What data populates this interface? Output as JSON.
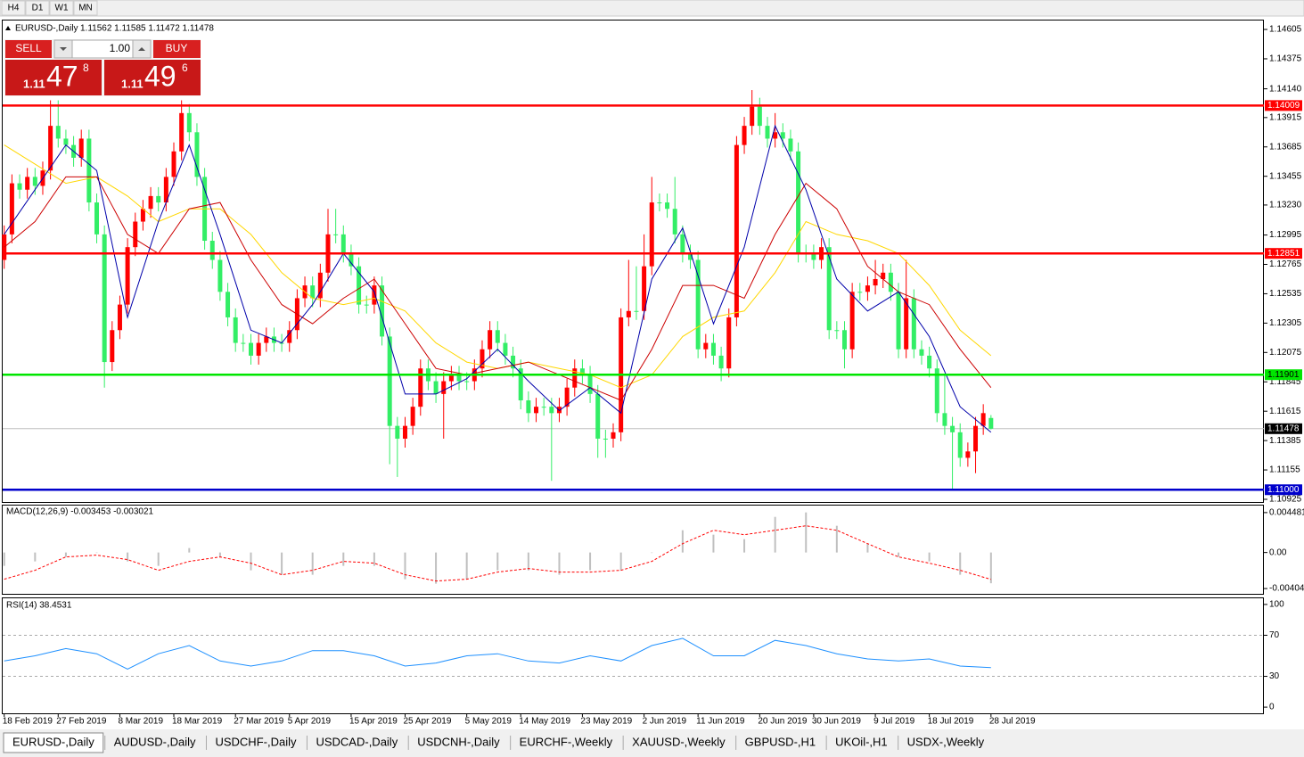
{
  "toolbar": {
    "timeframes": [
      "H4",
      "D1",
      "W1",
      "MN"
    ]
  },
  "trade_panel": {
    "sell": "SELL",
    "buy": "BUY",
    "lot": "1.00",
    "sell_price": {
      "prefix": "1.11",
      "big": "47",
      "small": "8"
    },
    "buy_price": {
      "prefix": "1.11",
      "big": "49",
      "small": "6"
    }
  },
  "chart_data": {
    "type": "candlestick",
    "title": "EURUSD-,Daily",
    "quote": "1.11562 1.11585 1.11472 1.11478",
    "up_color": "#ff0000",
    "down_color": "#33ee66",
    "open": [
      1.128,
      1.13,
      1.134,
      1.1335,
      1.1345,
      1.1338,
      1.135,
      1.1385,
      1.1375,
      1.137,
      1.136,
      1.1375,
      1.1325,
      1.13,
      1.12,
      1.1225,
      1.1245,
      1.129,
      1.131,
      1.132,
      1.133,
      1.1325,
      1.1345,
      1.1365,
      1.1395,
      1.138,
      1.1345,
      1.1295,
      1.128,
      1.1255,
      1.1235,
      1.1215,
      1.1215,
      1.1205,
      1.1215,
      1.122,
      1.1215,
      1.1215,
      1.1225,
      1.125,
      1.126,
      1.125,
      1.127,
      1.13,
      1.13,
      1.1285,
      1.1275,
      1.1245,
      1.1245,
      1.126,
      1.122,
      1.115,
      1.114,
      1.115,
      1.1165,
      1.1195,
      1.1185,
      1.1175,
      1.1185,
      1.119,
      1.1185,
      1.1185,
      1.1195,
      1.121,
      1.1225,
      1.1215,
      1.1205,
      1.1195,
      1.117,
      1.116,
      1.1165,
      1.1165,
      1.116,
      1.1165,
      1.118,
      1.1195,
      1.119,
      1.1175,
      1.114,
      1.114,
      1.1145,
      1.1235,
      1.124,
      1.124,
      1.1275,
      1.1325,
      1.1325,
      1.132,
      1.13,
      1.1285,
      1.128,
      1.121,
      1.1215,
      1.1205,
      1.1195,
      1.1235,
      1.137,
      1.1385,
      1.14,
      1.1385,
      1.1375,
      1.138,
      1.1375,
      1.1365,
      1.1285,
      1.1285,
      1.128,
      1.129,
      1.1225,
      1.1225,
      1.121,
      1.1255,
      1.1255,
      1.126,
      1.1265,
      1.127,
      1.1255,
      1.121,
      1.125,
      1.121,
      1.1205,
      1.1195,
      1.116,
      1.115,
      1.1145,
      1.1125,
      1.113,
      1.115,
      1.11562
    ],
    "high": [
      1.1307,
      1.1347,
      1.1347,
      1.1352,
      1.1352,
      1.1357,
      1.1405,
      1.1405,
      1.1382,
      1.1377,
      1.1382,
      1.1382,
      1.1332,
      1.1307,
      1.1232,
      1.1252,
      1.1297,
      1.1317,
      1.1327,
      1.1337,
      1.1337,
      1.1352,
      1.1372,
      1.1405,
      1.1402,
      1.1387,
      1.1352,
      1.1302,
      1.1287,
      1.1262,
      1.1242,
      1.1222,
      1.1222,
      1.1222,
      1.1227,
      1.1227,
      1.1222,
      1.1232,
      1.1257,
      1.1267,
      1.1267,
      1.1277,
      1.132,
      1.132,
      1.1307,
      1.1292,
      1.1282,
      1.1252,
      1.1267,
      1.1267,
      1.1227,
      1.1157,
      1.1157,
      1.1172,
      1.1202,
      1.1202,
      1.1192,
      1.1192,
      1.1197,
      1.1197,
      1.1192,
      1.1202,
      1.1217,
      1.1232,
      1.1232,
      1.1222,
      1.1212,
      1.1202,
      1.1177,
      1.1172,
      1.1172,
      1.1172,
      1.1172,
      1.1187,
      1.1202,
      1.1202,
      1.1197,
      1.1182,
      1.1147,
      1.1152,
      1.1242,
      1.128,
      1.1275,
      1.13,
      1.1345,
      1.1332,
      1.1332,
      1.1345,
      1.1307,
      1.1292,
      1.1287,
      1.1222,
      1.1222,
      1.1212,
      1.1242,
      1.1377,
      1.1392,
      1.1413,
      1.1407,
      1.1392,
      1.1395,
      1.1387,
      1.1382,
      1.1372,
      1.1292,
      1.1292,
      1.1297,
      1.1297,
      1.1232,
      1.1232,
      1.1262,
      1.1262,
      1.1267,
      1.128,
      1.1277,
      1.1277,
      1.1262,
      1.128,
      1.1257,
      1.1217,
      1.1212,
      1.1202,
      1.119,
      1.1157,
      1.1152,
      1.1137,
      1.1157,
      1.1167,
      1.11585
    ],
    "low": [
      1.1273,
      1.1293,
      1.1328,
      1.1328,
      1.1331,
      1.1331,
      1.1343,
      1.1368,
      1.1363,
      1.1353,
      1.1353,
      1.1318,
      1.1293,
      1.118,
      1.1193,
      1.1218,
      1.1238,
      1.1283,
      1.1303,
      1.1313,
      1.1318,
      1.1318,
      1.1338,
      1.1358,
      1.1373,
      1.1338,
      1.1288,
      1.1273,
      1.1248,
      1.1228,
      1.1208,
      1.1208,
      1.1198,
      1.1198,
      1.1208,
      1.1208,
      1.1208,
      1.1208,
      1.1218,
      1.1243,
      1.1243,
      1.1243,
      1.1263,
      1.1293,
      1.1278,
      1.1268,
      1.1238,
      1.1238,
      1.1238,
      1.1213,
      1.112,
      1.111,
      1.1133,
      1.1143,
      1.1158,
      1.1178,
      1.1168,
      1.114,
      1.1178,
      1.1178,
      1.1178,
      1.1178,
      1.1188,
      1.1203,
      1.1208,
      1.1198,
      1.1188,
      1.1163,
      1.1153,
      1.1153,
      1.1158,
      1.1107,
      1.1153,
      1.1158,
      1.1173,
      1.1183,
      1.1168,
      1.1125,
      1.1125,
      1.1133,
      1.1138,
      1.1228,
      1.1233,
      1.1233,
      1.1268,
      1.1318,
      1.1313,
      1.1293,
      1.1278,
      1.1273,
      1.1203,
      1.1203,
      1.1198,
      1.1185,
      1.1188,
      1.1228,
      1.1363,
      1.1378,
      1.1378,
      1.1368,
      1.1368,
      1.1368,
      1.1358,
      1.1278,
      1.1278,
      1.1273,
      1.1273,
      1.1218,
      1.1218,
      1.1195,
      1.1203,
      1.1248,
      1.1248,
      1.1253,
      1.1258,
      1.1248,
      1.1203,
      1.1203,
      1.1203,
      1.1198,
      1.1188,
      1.1153,
      1.1143,
      1.11,
      1.1118,
      1.1118,
      1.1113,
      1.1143,
      1.11472
    ],
    "close": [
      1.13,
      1.134,
      1.1335,
      1.1345,
      1.1338,
      1.135,
      1.1385,
      1.1375,
      1.137,
      1.136,
      1.1375,
      1.1325,
      1.13,
      1.12,
      1.1225,
      1.1245,
      1.129,
      1.131,
      1.132,
      1.133,
      1.1325,
      1.1345,
      1.1365,
      1.1395,
      1.138,
      1.1345,
      1.1295,
      1.128,
      1.1255,
      1.1235,
      1.1215,
      1.1215,
      1.1205,
      1.1215,
      1.122,
      1.1215,
      1.1215,
      1.1225,
      1.125,
      1.126,
      1.125,
      1.127,
      1.13,
      1.13,
      1.1285,
      1.1275,
      1.1245,
      1.1245,
      1.126,
      1.122,
      1.115,
      1.114,
      1.115,
      1.1165,
      1.1195,
      1.1185,
      1.1175,
      1.1185,
      1.119,
      1.1185,
      1.1185,
      1.1195,
      1.121,
      1.1225,
      1.1215,
      1.1205,
      1.1195,
      1.117,
      1.116,
      1.1165,
      1.1165,
      1.116,
      1.1165,
      1.118,
      1.1195,
      1.119,
      1.1175,
      1.114,
      1.114,
      1.1145,
      1.1235,
      1.124,
      1.124,
      1.1275,
      1.1325,
      1.1325,
      1.132,
      1.13,
      1.1285,
      1.128,
      1.121,
      1.1215,
      1.1205,
      1.1195,
      1.1235,
      1.137,
      1.1385,
      1.14,
      1.1385,
      1.1375,
      1.138,
      1.1375,
      1.1365,
      1.1285,
      1.1285,
      1.128,
      1.129,
      1.1225,
      1.1225,
      1.121,
      1.1255,
      1.1255,
      1.126,
      1.1265,
      1.127,
      1.1255,
      1.121,
      1.125,
      1.121,
      1.1205,
      1.1195,
      1.116,
      1.115,
      1.1145,
      1.1125,
      1.113,
      1.115,
      1.116,
      1.11478
    ],
    "xlim": [
      -0.2,
      163.4
    ],
    "xticks": [
      {
        "value": 0,
        "label": "18 Feb 2019"
      },
      {
        "value": 7,
        "label": "27 Feb 2019"
      },
      {
        "value": 15,
        "label": "8 Mar 2019"
      },
      {
        "value": 22,
        "label": "18 Mar 2019"
      },
      {
        "value": 30,
        "label": "27 Mar 2019"
      },
      {
        "value": 37,
        "label": "5 Apr 2019"
      },
      {
        "value": 45,
        "label": "15 Apr 2019"
      },
      {
        "value": 52,
        "label": "25 Apr 2019"
      },
      {
        "value": 60,
        "label": "5 May 2019"
      },
      {
        "value": 67,
        "label": "14 May 2019"
      },
      {
        "value": 75,
        "label": "23 May 2019"
      },
      {
        "value": 83,
        "label": "2 Jun 2019"
      },
      {
        "value": 90,
        "label": "11 Jun 2019"
      },
      {
        "value": 98,
        "label": "20 Jun 2019"
      },
      {
        "value": 105,
        "label": "30 Jun 2019"
      },
      {
        "value": 113,
        "label": "9 Jul 2019"
      },
      {
        "value": 120,
        "label": "18 Jul 2019"
      },
      {
        "value": 128,
        "label": "28 Jul 2019"
      }
    ],
    "ylim": [
      1.10904,
      1.14675
    ],
    "yticks": [
      1.14605,
      1.14375,
      {
        "value": 1.1414,
        "label": "1.14140"
      },
      1.13915,
      1.13685,
      1.13455,
      {
        "value": 1.1323,
        "label": "1.13230"
      },
      1.12995,
      1.12765,
      1.12535,
      1.12305,
      1.12075,
      1.11845,
      1.11615,
      1.11385,
      1.11155,
      1.10925
    ],
    "levels": [
      {
        "price": 1.14009,
        "color": "#ff0000",
        "text_color": "#ffffff"
      },
      {
        "price": 1.12851,
        "color": "#ff0000",
        "text_color": "#ffffff"
      },
      {
        "price": 1.11901,
        "color": "#00e600",
        "text_color": "#000000"
      },
      {
        "price": {
          "value": 1.11,
          "label": "1.11000"
        },
        "color": "#0000cc",
        "text_color": "#ffffff"
      }
    ],
    "current_price": 1.11478,
    "indicator_x": [
      0,
      4,
      8,
      12,
      16,
      20,
      24,
      28,
      32,
      36,
      40,
      44,
      48,
      52,
      56,
      60,
      64,
      68,
      72,
      76,
      80,
      84,
      88,
      92,
      96,
      100,
      104,
      108,
      112,
      116,
      120,
      124,
      128
    ],
    "moving_averages": [
      {
        "color": "#ffd700",
        "values": [
          1.137,
          1.1355,
          1.134,
          1.1345,
          1.133,
          1.131,
          1.132,
          1.132,
          1.13,
          1.127,
          1.125,
          1.1245,
          1.125,
          1.124,
          1.1215,
          1.12,
          1.1195,
          1.12,
          1.1195,
          1.119,
          1.118,
          1.119,
          1.122,
          1.1235,
          1.124,
          1.127,
          1.131,
          1.13,
          1.1295,
          1.1285,
          1.126,
          1.1225,
          1.1205
        ]
      },
      {
        "color": "#cc0000",
        "values": [
          1.129,
          1.131,
          1.1345,
          1.1345,
          1.13,
          1.1285,
          1.132,
          1.1325,
          1.128,
          1.1245,
          1.123,
          1.125,
          1.1265,
          1.123,
          1.1195,
          1.119,
          1.1195,
          1.12,
          1.119,
          1.118,
          1.117,
          1.121,
          1.126,
          1.126,
          1.125,
          1.13,
          1.134,
          1.132,
          1.1275,
          1.1255,
          1.1245,
          1.121,
          1.118
        ]
      },
      {
        "color": "#0000aa",
        "values": [
          1.13,
          1.1335,
          1.137,
          1.135,
          1.1235,
          1.131,
          1.137,
          1.13,
          1.1225,
          1.1215,
          1.1245,
          1.1285,
          1.1255,
          1.1175,
          1.1175,
          1.1187,
          1.121,
          1.1185,
          1.1162,
          1.118,
          1.116,
          1.1265,
          1.1305,
          1.123,
          1.129,
          1.1385,
          1.1335,
          1.1265,
          1.124,
          1.1255,
          1.122,
          1.1165,
          1.1145
        ]
      }
    ],
    "macd": {
      "label": "MACD(12,26,9) -0.003453 -0.003021",
      "ylim": [
        -0.00464,
        0.00527
      ],
      "yticks": [
        0.004481,
        {
          "value": 0,
          "label": "0.00"
        },
        -0.004048
      ],
      "hist_color": "#c0c0c0",
      "signal_color": "#ff0000",
      "histogram": [
        -0.0015,
        -0.001,
        -0.0005,
        0.0,
        -0.001,
        -0.0015,
        0.0005,
        -0.0005,
        -0.002,
        -0.0025,
        -0.0025,
        -0.0015,
        -0.0015,
        -0.003,
        -0.0035,
        -0.003,
        -0.002,
        -0.002,
        -0.0025,
        -0.002,
        -0.002,
        0.0,
        0.0025,
        0.002,
        0.0015,
        0.004,
        0.0045,
        0.003,
        0.001,
        -0.0005,
        -0.001,
        -0.0025,
        -0.003453
      ],
      "signal": [
        -0.003,
        -0.002,
        -0.0005,
        -0.0003,
        -0.0008,
        -0.002,
        -0.001,
        -0.0005,
        -0.0012,
        -0.0025,
        -0.002,
        -0.001,
        -0.0012,
        -0.0025,
        -0.0032,
        -0.003,
        -0.0022,
        -0.0018,
        -0.0022,
        -0.0022,
        -0.002,
        -0.001,
        0.001,
        0.0025,
        0.002,
        0.0025,
        0.003,
        0.0025,
        0.001,
        -0.0005,
        -0.0012,
        -0.002,
        -0.003021
      ]
    },
    "rsi": {
      "label": "RSI(14) 38.4531",
      "ylim": [
        -6,
        106
      ],
      "yticks": [
        100,
        70,
        30,
        0
      ],
      "levels": [
        70,
        30
      ],
      "color": "#1e90ff",
      "values": [
        45,
        50,
        57,
        52,
        37,
        52,
        60,
        45,
        40,
        45,
        55,
        55,
        50,
        40,
        43,
        50,
        52,
        45,
        43,
        50,
        45,
        60,
        67,
        50,
        50,
        65,
        60,
        52,
        47,
        45,
        47,
        40,
        38.4531
      ]
    }
  },
  "tabs": [
    "EURUSD-,Daily",
    "AUDUSD-,Daily",
    "USDCHF-,Daily",
    "USDCAD-,Daily",
    "USDCNH-,Daily",
    "EURCHF-,Weekly",
    "XAUUSD-,Weekly",
    "GBPUSD-,H1",
    "UKOil-,H1",
    "USDX-,Weekly"
  ]
}
